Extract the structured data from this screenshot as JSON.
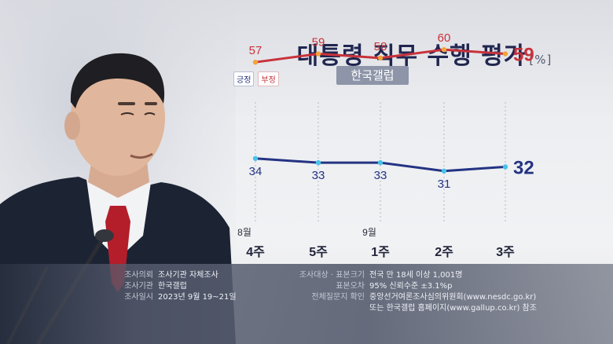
{
  "header": {
    "title": "대통령 직무 수행 평가",
    "unit": "[%]",
    "legend_positive": "긍정",
    "legend_negative": "부정",
    "source": "한국갤럽"
  },
  "colors": {
    "positive": "#243383",
    "negative": "#c8323a",
    "navy_title": "#20264f"
  },
  "chart_data": {
    "type": "line",
    "title": "대통령 직무 수행 평가",
    "ylabel": "[%]",
    "categories": [
      "4주",
      "5주",
      "1주",
      "2주",
      "3주"
    ],
    "month_labels": [
      "8월",
      "",
      "9월",
      "",
      ""
    ],
    "series": [
      {
        "name": "부정",
        "values": [
          57,
          59,
          58,
          60,
          59
        ],
        "color": "#c8323a"
      },
      {
        "name": "긍정",
        "values": [
          34,
          33,
          33,
          31,
          32
        ],
        "color": "#243383"
      }
    ],
    "ylim": [
      25,
      65
    ],
    "grid": "vertical dotted lines",
    "legend": "top-left"
  },
  "footer": {
    "left": [
      {
        "key": "조사의뢰",
        "value": "조사기관 자체조사"
      },
      {
        "key": "조사기관",
        "value": "한국갤럽"
      },
      {
        "key": "조사일시",
        "value": "2023년 9월 19~21일"
      }
    ],
    "right": [
      {
        "key": "조사대상 · 표본크기",
        "value": "전국 만 18세 이상 1,001명"
      },
      {
        "key": "표본오차",
        "value": "95% 신뢰수준 ±3.1%p"
      },
      {
        "key": "전체질문지 확인",
        "value": "중앙선거여론조사심의위원회(www.nesdc.go.kr)"
      },
      {
        "key": "",
        "value": "또는 한국갤럽 홈페이지(www.gallup.co.kr) 참조"
      }
    ]
  }
}
